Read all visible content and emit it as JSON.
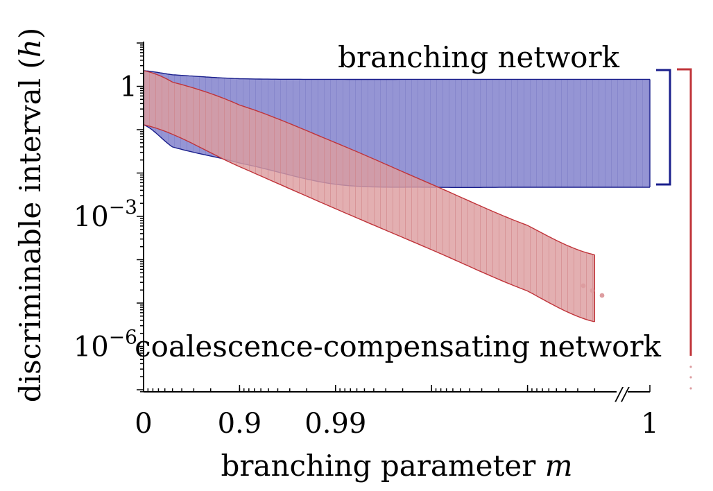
{
  "chart_data": {
    "type": "area",
    "title": "",
    "xlabel": "branching parameter m",
    "xlabel_main": "branching parameter ",
    "xlabel_var": "m",
    "ylabel": "discriminable interval (h)",
    "ylabel_main": "discriminable interval (",
    "ylabel_var": "h",
    "ylabel_close": ")",
    "x_scale": "-log10(1 - m), with axis break before m = 1",
    "y_scale": "log",
    "ylim": [
      1e-07,
      10
    ],
    "x_ticks": [
      {
        "value": 0,
        "label": "0"
      },
      {
        "value": 0.9,
        "label": "0.9"
      },
      {
        "value": 0.99,
        "label": "0.99"
      },
      {
        "value": 1,
        "label": "1"
      }
    ],
    "y_ticks": [
      {
        "value": 1,
        "label": "1",
        "base": "1",
        "exp": ""
      },
      {
        "value": 0.001,
        "label": "10^-3",
        "base": "10",
        "exp": "−3"
      },
      {
        "value": 1e-06,
        "label": "10^-6",
        "base": "10",
        "exp": "−6"
      }
    ],
    "series": [
      {
        "name": "branching network",
        "color": "#1a1f8c",
        "fill": "#8f8fd2",
        "upper": [
          [
            0,
            2.3
          ],
          [
            0.5,
            1.85
          ],
          [
            0.9,
            1.5
          ],
          [
            0.99,
            1.45
          ],
          [
            0.999,
            1.45
          ],
          [
            0.9999,
            1.45
          ],
          [
            1,
            1.45
          ]
        ],
        "lower": [
          [
            0,
            0.13
          ],
          [
            0.5,
            0.04
          ],
          [
            0.9,
            0.017
          ],
          [
            0.99,
            0.0055
          ],
          [
            0.999,
            0.0047
          ],
          [
            0.9999,
            0.0047
          ],
          [
            1,
            0.0047
          ]
        ]
      },
      {
        "name": "coalescence-compensating network",
        "color": "#c0343a",
        "fill": "#dd9da0",
        "upper": [
          [
            0,
            2.3
          ],
          [
            0.5,
            1.25
          ],
          [
            0.9,
            0.37
          ],
          [
            0.99,
            0.05
          ],
          [
            0.999,
            0.0055
          ],
          [
            0.9999,
            0.00062
          ],
          [
            0.99998,
            0.00013
          ]
        ],
        "lower": [
          [
            0,
            0.13
          ],
          [
            0.9,
            0.014
          ],
          [
            0.99,
            0.0015
          ],
          [
            0.999,
            0.00017
          ],
          [
            0.9999,
            1.9e-05
          ],
          [
            0.99998,
            3.7e-06
          ]
        ]
      }
    ],
    "axis_break": "//",
    "continuation": "..."
  }
}
